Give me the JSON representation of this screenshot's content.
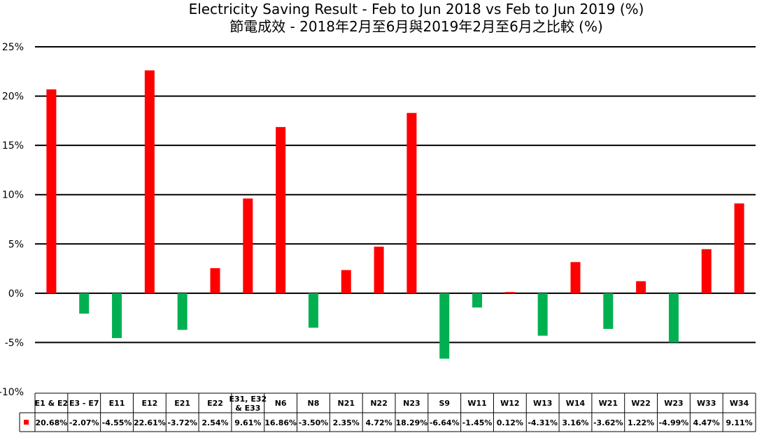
{
  "chart_data": {
    "type": "bar",
    "title": "Electricity Saving Result - Feb to Jun 2018 vs Feb to Jun 2019 (%)",
    "subtitle": "節電成效 - 2018年2月至6月與2019年2月至6月之比較 (%)",
    "xlabel": "",
    "ylabel": "",
    "ylim": [
      -10,
      25
    ],
    "ytick_values": [
      25,
      20,
      15,
      10,
      5,
      0,
      -5,
      -10
    ],
    "ytick_labels": [
      "25%",
      "20%",
      "15%",
      "10%",
      "5%",
      "0%",
      "-5%",
      "-10%"
    ],
    "grid": true,
    "categories": [
      "E1 & E2",
      "E3 - E7",
      "E11",
      "E12",
      "E21",
      "E22",
      "E31, E32 & E33",
      "N6",
      "N8",
      "N21",
      "N22",
      "N23",
      "S9",
      "W11",
      "W12",
      "W13",
      "W14",
      "W21",
      "W22",
      "W23",
      "W33",
      "W34"
    ],
    "values": [
      20.68,
      -2.07,
      -4.55,
      22.61,
      -3.72,
      2.54,
      9.61,
      16.86,
      -3.5,
      2.35,
      4.72,
      18.29,
      -6.64,
      -1.45,
      0.12,
      -4.31,
      3.16,
      -3.62,
      1.22,
      -4.99,
      4.47,
      9.11
    ],
    "value_labels": [
      "20.68%",
      "-2.07%",
      "-4.55%",
      "22.61%",
      "-3.72%",
      "2.54%",
      "9.61%",
      "16.86%",
      "-3.50%",
      "2.35%",
      "4.72%",
      "18.29%",
      "-6.64%",
      "-1.45%",
      "0.12%",
      "-4.31%",
      "3.16%",
      "-3.62%",
      "1.22%",
      "-4.99%",
      "4.47%",
      "9.11%"
    ],
    "colors": {
      "positive": "#ff0000",
      "negative": "#00b050",
      "grid": "#000000",
      "legend_key": "#ff0000"
    },
    "data_table": true
  }
}
